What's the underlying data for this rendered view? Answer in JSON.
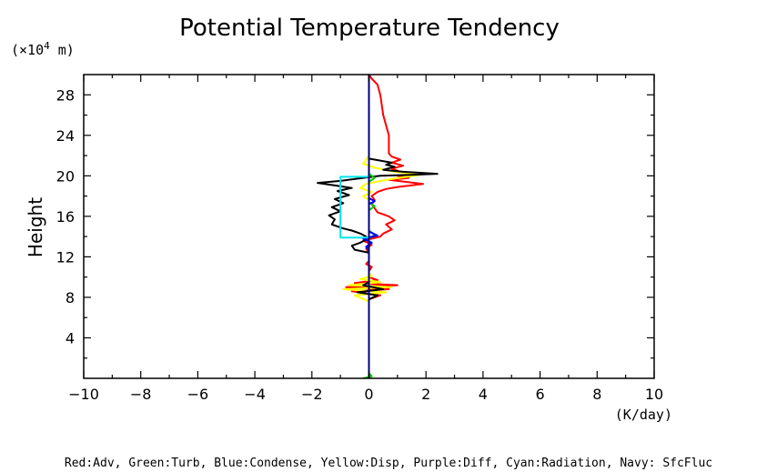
{
  "chart_data": {
    "type": "line",
    "title": "Potential Temperature Tendency",
    "ylabel": "Height",
    "y_unit_prefix": "(×10",
    "y_unit_exp": "4",
    "y_unit_suffix": " m)",
    "xlabel": "(K/day)",
    "legend_text": "Red:Adv, Green:Turb, Blue:Condense, Yellow:Disp, Purple:Diff, Cyan:Radiation, Navy: SfcFluc",
    "xlim": [
      -10,
      10
    ],
    "ylim": [
      0,
      30
    ],
    "x_ticks": [
      -10,
      -8,
      -6,
      -4,
      -2,
      0,
      2,
      4,
      6,
      8,
      10
    ],
    "x_tick_labels": [
      "−10",
      "−8",
      "−6",
      "−4",
      "−2",
      "0",
      "2",
      "4",
      "6",
      "8",
      "10"
    ],
    "y_ticks": [
      4,
      8,
      12,
      16,
      20,
      24,
      28
    ],
    "y_tick_labels": [
      "4",
      "8",
      "12",
      "16",
      "20",
      "24",
      "28"
    ],
    "grid": false,
    "series": [
      {
        "name": "Adv",
        "color": "#ff0000",
        "points": [
          [
            0,
            0
          ],
          [
            0,
            1
          ],
          [
            0,
            2
          ],
          [
            0,
            3
          ],
          [
            0,
            4
          ],
          [
            0,
            5
          ],
          [
            0,
            6
          ],
          [
            0,
            7
          ],
          [
            0,
            7.8
          ],
          [
            0.4,
            8.2
          ],
          [
            -0.6,
            8.6
          ],
          [
            0.7,
            8.8
          ],
          [
            -0.8,
            9.0
          ],
          [
            1.0,
            9.2
          ],
          [
            -0.5,
            9.4
          ],
          [
            0.3,
            9.7
          ],
          [
            0,
            10
          ],
          [
            0,
            10.6
          ],
          [
            0.1,
            11
          ],
          [
            -0.1,
            11.3
          ],
          [
            0,
            11.6
          ],
          [
            0,
            12.4
          ],
          [
            -0.1,
            12.8
          ],
          [
            0.1,
            13.2
          ],
          [
            -0.2,
            13.6
          ],
          [
            0.4,
            14.0
          ],
          [
            0.5,
            14.3
          ],
          [
            0.8,
            14.7
          ],
          [
            0.6,
            15.2
          ],
          [
            0.9,
            15.6
          ],
          [
            0.7,
            16.0
          ],
          [
            0.3,
            16.4
          ],
          [
            0.2,
            16.8
          ],
          [
            0.1,
            17.2
          ],
          [
            0.2,
            17.6
          ],
          [
            0.1,
            18.0
          ],
          [
            0.3,
            18.4
          ],
          [
            0.6,
            18.7
          ],
          [
            1.0,
            18.9
          ],
          [
            1.9,
            19.2
          ],
          [
            1.3,
            19.4
          ],
          [
            0.7,
            19.6
          ],
          [
            1.4,
            19.8
          ],
          [
            1.0,
            20.0
          ],
          [
            1.6,
            20.2
          ],
          [
            1.1,
            20.4
          ],
          [
            0.8,
            20.7
          ],
          [
            1.2,
            21.0
          ],
          [
            0.8,
            21.3
          ],
          [
            1.1,
            21.6
          ],
          [
            0.8,
            21.9
          ],
          [
            0.7,
            22.2
          ],
          [
            0.7,
            23
          ],
          [
            0.7,
            24
          ],
          [
            0.6,
            25
          ],
          [
            0.5,
            26
          ],
          [
            0.45,
            27
          ],
          [
            0.4,
            28
          ],
          [
            0.3,
            29
          ],
          [
            0.1,
            29.6
          ],
          [
            0,
            30
          ]
        ]
      },
      {
        "name": "Yellow",
        "color": "#ffff00",
        "points": [
          [
            0,
            0
          ],
          [
            0,
            7.6
          ],
          [
            -0.5,
            8.2
          ],
          [
            0.6,
            8.5
          ],
          [
            -0.9,
            8.8
          ],
          [
            0.8,
            9.0
          ],
          [
            -0.7,
            9.2
          ],
          [
            0.4,
            9.5
          ],
          [
            -0.3,
            9.8
          ],
          [
            0.1,
            10.1
          ],
          [
            0,
            10.4
          ],
          [
            0,
            17.6
          ],
          [
            -0.2,
            18.0
          ],
          [
            0.1,
            18.4
          ],
          [
            -0.3,
            18.8
          ],
          [
            -0.1,
            19.2
          ],
          [
            0.6,
            19.6
          ],
          [
            1.8,
            20.1
          ],
          [
            0.9,
            20.4
          ],
          [
            0.2,
            20.8
          ],
          [
            -0.2,
            21.2
          ],
          [
            -0.1,
            21.6
          ],
          [
            0,
            22.0
          ],
          [
            0,
            30
          ]
        ]
      },
      {
        "name": "Black",
        "color": "#000000",
        "points": [
          [
            0,
            0
          ],
          [
            0,
            7.8
          ],
          [
            0.3,
            8.2
          ],
          [
            -0.4,
            8.5
          ],
          [
            0.5,
            8.8
          ],
          [
            -0.2,
            9.2
          ],
          [
            0,
            9.5
          ],
          [
            0,
            12.4
          ],
          [
            -0.5,
            12.7
          ],
          [
            -0.6,
            13.1
          ],
          [
            -0.3,
            13.4
          ],
          [
            -0.1,
            13.7
          ],
          [
            -0.1,
            14.0
          ],
          [
            -0.3,
            14.3
          ],
          [
            -0.6,
            14.6
          ],
          [
            -0.9,
            14.8
          ],
          [
            -1.3,
            15.2
          ],
          [
            -1.2,
            15.7
          ],
          [
            -1.4,
            16.1
          ],
          [
            -1.0,
            16.5
          ],
          [
            -1.3,
            16.9
          ],
          [
            -0.9,
            17.3
          ],
          [
            -1.2,
            17.7
          ],
          [
            -0.7,
            18.1
          ],
          [
            -1.1,
            18.5
          ],
          [
            -0.6,
            18.8
          ],
          [
            -1.3,
            19.1
          ],
          [
            -1.8,
            19.3
          ],
          [
            -1.0,
            19.5
          ],
          [
            -0.2,
            19.8
          ],
          [
            0.4,
            20.0
          ],
          [
            1.5,
            20.1
          ],
          [
            2.4,
            20.2
          ],
          [
            1.2,
            20.4
          ],
          [
            0.5,
            20.6
          ],
          [
            0.9,
            20.9
          ],
          [
            0.6,
            21.1
          ],
          [
            0.8,
            21.3
          ],
          [
            0.4,
            21.5
          ],
          [
            0,
            21.7
          ],
          [
            0,
            30
          ]
        ]
      },
      {
        "name": "Green",
        "color": "#00cc00",
        "points": [
          [
            -0.2,
            0
          ],
          [
            0.1,
            0.2
          ],
          [
            0,
            0.5
          ],
          [
            0,
            13.8
          ],
          [
            0.2,
            14.2
          ],
          [
            0,
            14.6
          ],
          [
            0,
            16.6
          ],
          [
            0.2,
            17.0
          ],
          [
            0,
            17.4
          ],
          [
            0,
            19.4
          ],
          [
            0.2,
            19.8
          ],
          [
            0,
            20.2
          ],
          [
            0,
            30
          ]
        ]
      },
      {
        "name": "Blue",
        "color": "#0000ff",
        "points": [
          [
            0,
            0
          ],
          [
            0,
            12.6
          ],
          [
            -0.1,
            13.0
          ],
          [
            0.1,
            13.4
          ],
          [
            -0.2,
            13.8
          ],
          [
            0.3,
            14.1
          ],
          [
            0,
            14.5
          ],
          [
            0,
            17.2
          ],
          [
            0.2,
            17.5
          ],
          [
            0,
            17.8
          ],
          [
            0,
            30
          ]
        ]
      },
      {
        "name": "Radiation",
        "color": "#00e5ee",
        "points": [
          [
            0,
            13.9
          ],
          [
            -1.0,
            13.9
          ],
          [
            -1.0,
            19.9
          ],
          [
            0,
            19.9
          ]
        ]
      },
      {
        "name": "SfcFluc",
        "color": "#000080",
        "points": [
          [
            0,
            0
          ],
          [
            0,
            30
          ]
        ]
      }
    ]
  }
}
